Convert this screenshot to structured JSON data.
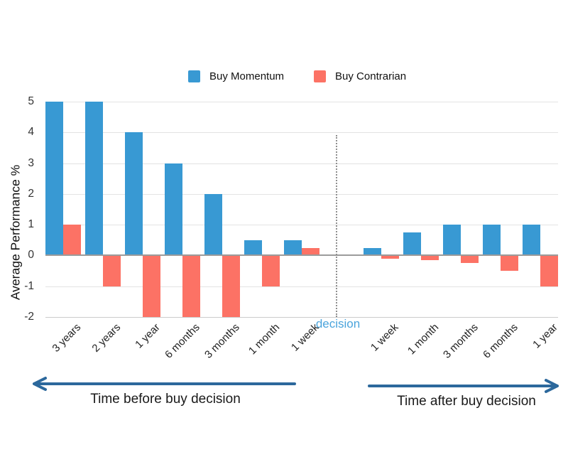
{
  "colors": {
    "arrow": "#2c689c",
    "decision_text": "#4ba4dc",
    "gridline": "#e3e3e3",
    "zero_line": "#9b9b9b"
  },
  "chart_data": {
    "type": "bar",
    "title": "",
    "xlabel": "",
    "ylabel": "Average Performance %",
    "ylim": [
      -2,
      5
    ],
    "yticks": [
      5,
      4,
      3,
      2,
      1,
      0,
      -1,
      -2
    ],
    "grid": true,
    "legend_position": "top",
    "series": [
      {
        "name": "Buy Momentum",
        "color": "#3899d3"
      },
      {
        "name": "Buy Contrarian",
        "color": "#fc7265"
      }
    ],
    "sections": [
      {
        "id": "before",
        "categories": [
          "3 years",
          "2 years",
          "1 year",
          "6 months",
          "3 months",
          "1 month",
          "1 week"
        ],
        "momentum": [
          5,
          5,
          4,
          3,
          2,
          0.5,
          0.5
        ],
        "contrarian": [
          1,
          -1,
          -2,
          -2,
          -2,
          -1,
          0.25
        ]
      },
      {
        "id": "after",
        "categories": [
          "1 week",
          "1 month",
          "3 months",
          "6 months",
          "1 year"
        ],
        "momentum": [
          0.25,
          0.75,
          1,
          1,
          1
        ],
        "contrarian": [
          -0.1,
          -0.15,
          -0.25,
          -0.5,
          -1
        ]
      }
    ],
    "decision_label": "decision"
  },
  "annotations": {
    "before": "Time before buy decision",
    "after": "Time after buy decision"
  }
}
